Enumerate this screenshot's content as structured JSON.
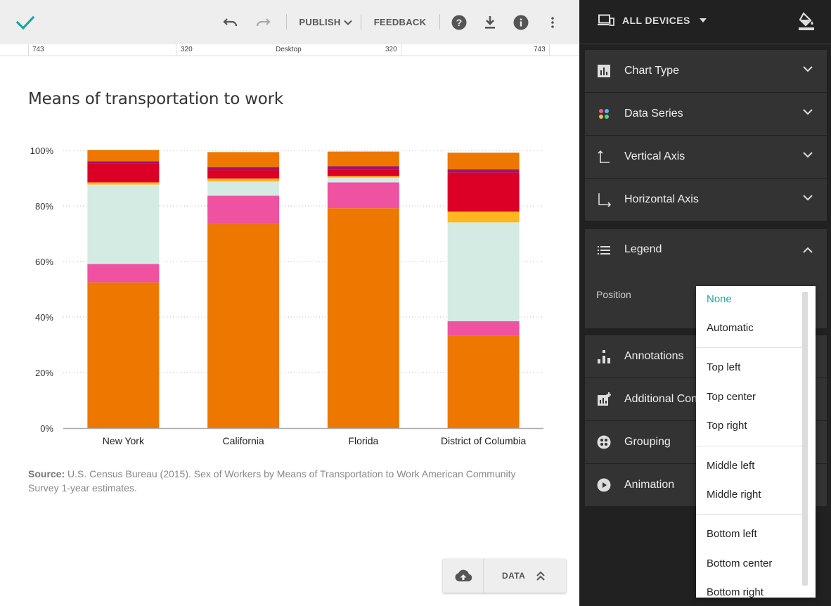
{
  "toolbar": {
    "publish_label": "PUBLISH",
    "feedback_label": "FEEDBACK"
  },
  "ruler": {
    "labels": [
      "743",
      "320",
      "Desktop",
      "320",
      "743"
    ]
  },
  "chart": {
    "title": "Means of transportation to work",
    "source_label": "Source:",
    "source_text": "U.S. Census Bureau (2015). Sex of Workers by Means of Transportation to Work American Community Survey 1-year estimates."
  },
  "chart_data": {
    "type": "bar",
    "stacked": true,
    "categories": [
      "New York",
      "California",
      "Florida",
      "District of Columbia"
    ],
    "ylim": [
      0,
      100
    ],
    "yticks": [
      "0%",
      "20%",
      "40%",
      "60%",
      "80%",
      "100%"
    ],
    "grid": true,
    "legend": "none",
    "series": [
      {
        "color": "#ee7700",
        "values": [
          52.5,
          73.5,
          79.2,
          33.2
        ]
      },
      {
        "color": "#ef52a0",
        "values": [
          6.6,
          10.2,
          9.3,
          5.3
        ]
      },
      {
        "color": "#d4ebe4",
        "values": [
          28.6,
          5.1,
          1.7,
          35.6
        ]
      },
      {
        "color": "#ffb71d",
        "values": [
          0.8,
          1.1,
          0.6,
          3.9
        ]
      },
      {
        "color": "#dc0027",
        "values": [
          6.8,
          3.0,
          2.2,
          14.0
        ]
      },
      {
        "color": "#a0146e",
        "values": [
          0.8,
          1.1,
          1.3,
          1.2
        ]
      },
      {
        "color": "#ee7700",
        "values": [
          4.1,
          5.4,
          5.3,
          6.0
        ]
      }
    ]
  },
  "data_button": {
    "label": "DATA"
  },
  "panel": {
    "devices_label": "ALL DEVICES",
    "sections": {
      "chart_type": "Chart Type",
      "data_series": "Data Series",
      "vertical_axis": "Vertical Axis",
      "horizontal_axis": "Horizontal Axis",
      "legend": "Legend",
      "annotations": "Annotations",
      "additional": "Additional Con",
      "grouping": "Grouping",
      "animation": "Animation"
    },
    "position_label": "Position"
  },
  "dropdown": {
    "options": [
      "None",
      "Automatic",
      "Top left",
      "Top center",
      "Top right",
      "Middle left",
      "Middle right",
      "Bottom left",
      "Bottom center",
      "Bottom right"
    ],
    "selected": "None"
  },
  "colors": {
    "accent": "#1aa8a0",
    "panel_bg": "#212121",
    "section_bg": "#333333"
  }
}
